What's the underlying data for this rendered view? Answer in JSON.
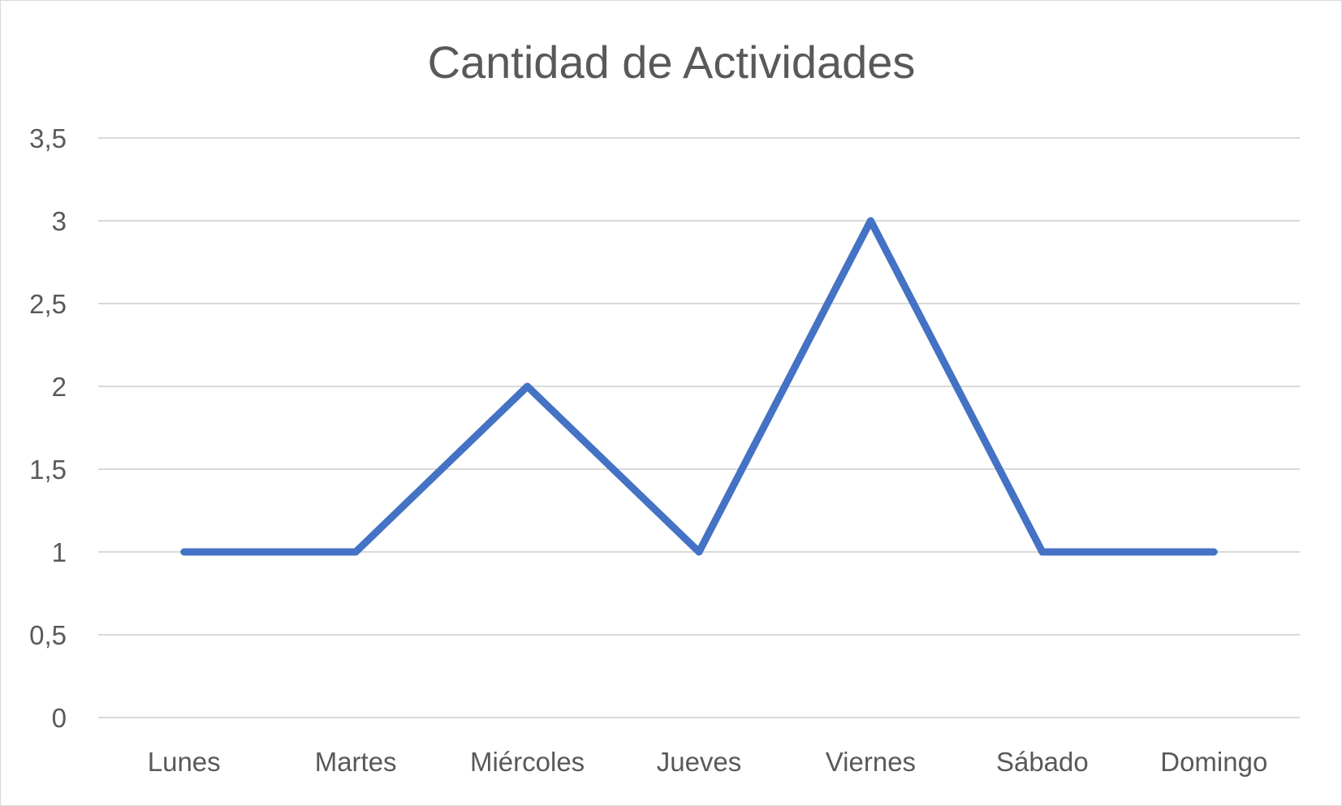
{
  "chart_data": {
    "type": "line",
    "title": "Cantidad de Actividades",
    "xlabel": "",
    "ylabel": "",
    "categories": [
      "Lunes",
      "Martes",
      "Miércoles",
      "Jueves",
      "Viernes",
      "Sábado",
      "Domingo"
    ],
    "series": [
      {
        "values": [
          1,
          1,
          2,
          1,
          3,
          1,
          1
        ],
        "color": "#4472c4"
      }
    ],
    "ylim": [
      0,
      3.5
    ],
    "yticks": [
      0,
      0.5,
      1,
      1.5,
      2,
      2.5,
      3,
      3.5
    ],
    "ytick_labels": [
      "0",
      "0,5",
      "1",
      "1,5",
      "2",
      "2,5",
      "3",
      "3,5"
    ],
    "grid": true,
    "legend": "none"
  }
}
